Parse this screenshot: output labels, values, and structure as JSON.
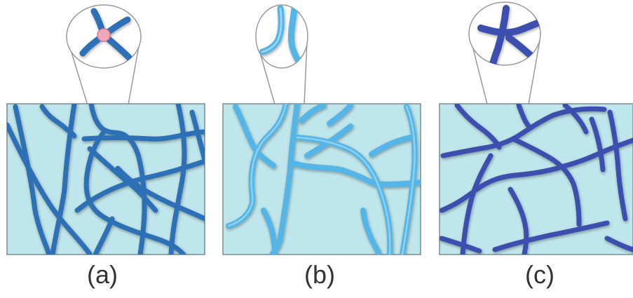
{
  "colors": {
    "background": "#ffffff",
    "panel_fill": "#bfe6ec",
    "panel_border": "#7a8a8c",
    "connector": "#9a9a9a",
    "fiber_a": "#2d6fb5",
    "fiber_b": "#55b5e6",
    "fiber_b_highlight": "#9bd9f5",
    "fiber_c": "#3c4fae",
    "crosslink_node": "#f0a7b8"
  },
  "panels": [
    {
      "label": "(a)",
      "fiber_color": "#2d6fb5",
      "inset_detail": "crosslinked-junction"
    },
    {
      "label": "(b)",
      "fiber_color": "#55b5e6",
      "inset_detail": "entangled-fibers"
    },
    {
      "label": "(c)",
      "fiber_color": "#3c4fae",
      "inset_detail": "crossing-fibers"
    }
  ]
}
